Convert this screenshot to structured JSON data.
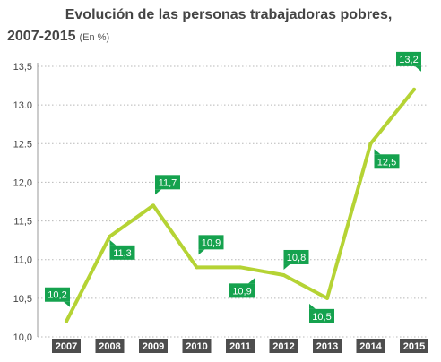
{
  "chart_data": {
    "type": "line",
    "title": "Evolución de las personas trabajadoras pobres,",
    "title_line2": "2007-2015",
    "unit": "(En %)",
    "xlabel": "",
    "ylabel": "",
    "categories": [
      "2007",
      "2008",
      "2009",
      "2010",
      "2011",
      "2012",
      "2013",
      "2014",
      "2015"
    ],
    "series": [
      {
        "values": [
          10.2,
          11.3,
          11.7,
          10.9,
          10.9,
          10.8,
          10.5,
          12.5,
          13.2
        ]
      }
    ],
    "data_labels": [
      "10,2",
      "11,3",
      "11,7",
      "10,9",
      "10,9",
      "10,8",
      "10,5",
      "12,5",
      "13,2"
    ],
    "ylim": [
      10.0,
      13.5
    ],
    "y_ticks": [
      10.0,
      10.5,
      11.0,
      11.5,
      12.0,
      12.5,
      13.0,
      13.5
    ],
    "y_tick_labels": [
      "10,0",
      "10,5",
      "11,0",
      "11,5",
      "12,0",
      "12.5",
      "13.0",
      "13,5"
    ],
    "grid": "horizontal dashed",
    "colors": {
      "line": "#b5d334",
      "label_bg": "#15a24e",
      "label_text": "#ffffff",
      "year_bg": "#4d4d4d",
      "year_text": "#ffffff",
      "axis_text": "#444444",
      "grid": "#b8b8b8"
    }
  }
}
